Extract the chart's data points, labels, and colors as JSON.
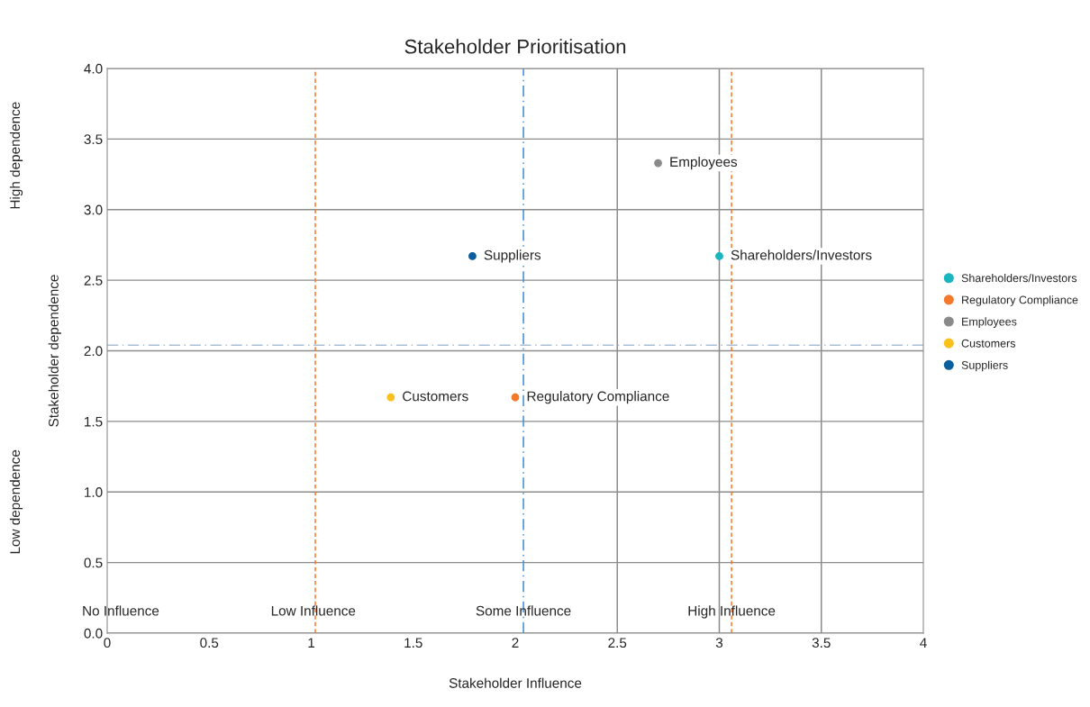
{
  "chart_data": {
    "type": "scatter",
    "title": "Stakeholder Prioritisation",
    "xlabel": "Stakeholder Influence",
    "ylabel": "Stakeholder dependence",
    "xlim": [
      0,
      4
    ],
    "ylim": [
      0,
      4
    ],
    "xticks": [
      0,
      0.5,
      1,
      1.5,
      2,
      2.5,
      3,
      3.5,
      4
    ],
    "yticks": [
      {
        "value": 0,
        "label": "0.0"
      },
      0.5,
      {
        "value": 1,
        "label": "1.0"
      },
      1.5,
      {
        "value": 2,
        "label": "2.0"
      },
      2.5,
      {
        "value": 3,
        "label": "3.0"
      },
      3.5,
      {
        "value": 4,
        "label": "4.0"
      }
    ],
    "grid": "y",
    "legend": "right",
    "marker": "circle",
    "series": [
      {
        "name": "Shareholders/Investors",
        "color": "#1bb5c0",
        "x": [
          3.0
        ],
        "values": [
          2.67
        ]
      },
      {
        "name": "Regulatory Compliance",
        "color": "#f5792a",
        "x": [
          2.0
        ],
        "values": [
          1.67
        ]
      },
      {
        "name": "Employees",
        "color": "#8a8a8a",
        "x": [
          2.7
        ],
        "values": [
          3.33
        ]
      },
      {
        "name": "Customers",
        "color": "#f9c11b",
        "x": [
          1.39
        ],
        "values": [
          1.67
        ]
      },
      {
        "name": "Suppliers",
        "color": "#0a5e9e",
        "x": [
          1.79
        ],
        "values": [
          2.67
        ]
      }
    ],
    "ref_lines": [
      {
        "axis": "x",
        "value": 2.5,
        "color": "#8c8c8c",
        "line_style": "solid"
      },
      {
        "axis": "x",
        "value": 3,
        "color": "#8c8c8c",
        "line_style": "solid"
      },
      {
        "axis": "x",
        "value": 3.5,
        "color": "#8c8c8c",
        "line_style": "solid"
      },
      {
        "axis": "x",
        "value": 1.02,
        "color": "#f5792a",
        "line_style": "dashed"
      },
      {
        "axis": "x",
        "value": 3.06,
        "color": "#f5792a",
        "line_style": "dashed"
      },
      {
        "axis": "x",
        "value": 2.04,
        "color": "#3a8fd9",
        "line_style": "dashdot"
      },
      {
        "axis": "y",
        "value": 2.04,
        "color": "#a9bfd6",
        "line_style": "dashdot"
      }
    ],
    "annotations": [
      "No Influence",
      {
        "text": "Low Influence",
        "x": 1.01,
        "y": 0.15
      },
      {
        "text": "Some Influence",
        "x": 2.04,
        "y": 0.15
      },
      {
        "text": "High Influence",
        "x": 3.06,
        "y": 0.15
      },
      "High dependence",
      "Low dependence"
    ]
  }
}
